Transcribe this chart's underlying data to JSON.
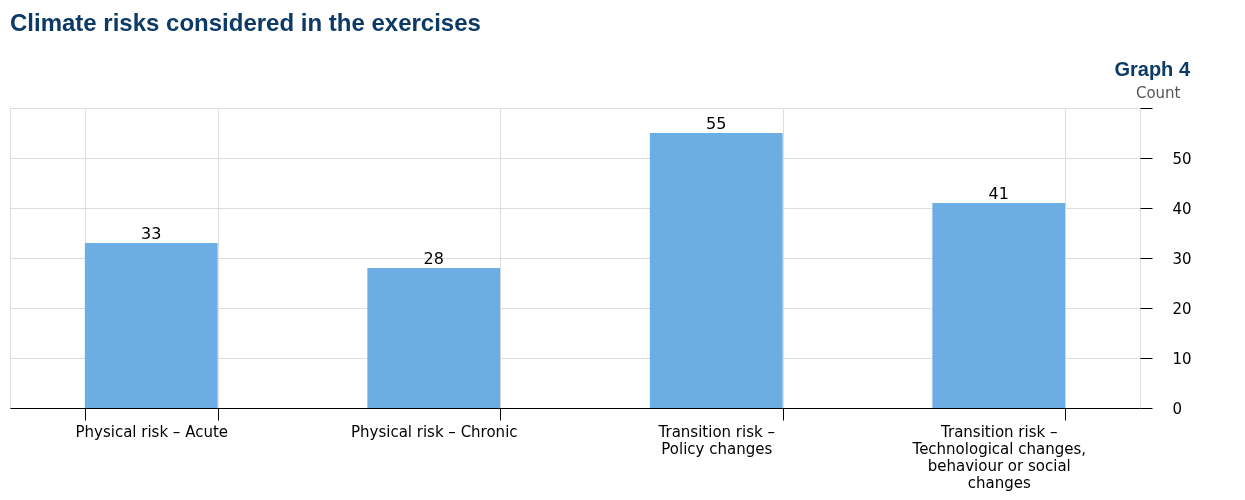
{
  "chart_data": {
    "type": "bar",
    "title": "Climate risks considered in the exercises",
    "annotations": [
      "Graph 4"
    ],
    "ylabel": "Count",
    "categories": [
      "Physical risk – Acute",
      "Physical risk – Chronic",
      "Transition risk – Policy changes",
      "Transition risk – Technological changes, behaviour or social changes"
    ],
    "values": [
      33,
      28,
      55,
      41
    ],
    "color": "#6caee4",
    "ylim": [
      0,
      60
    ],
    "yticks": [
      0,
      10,
      20,
      30,
      40,
      50,
      {
        "value": 60,
        "label": null
      }
    ],
    "grid": true,
    "data_labels": true
  }
}
